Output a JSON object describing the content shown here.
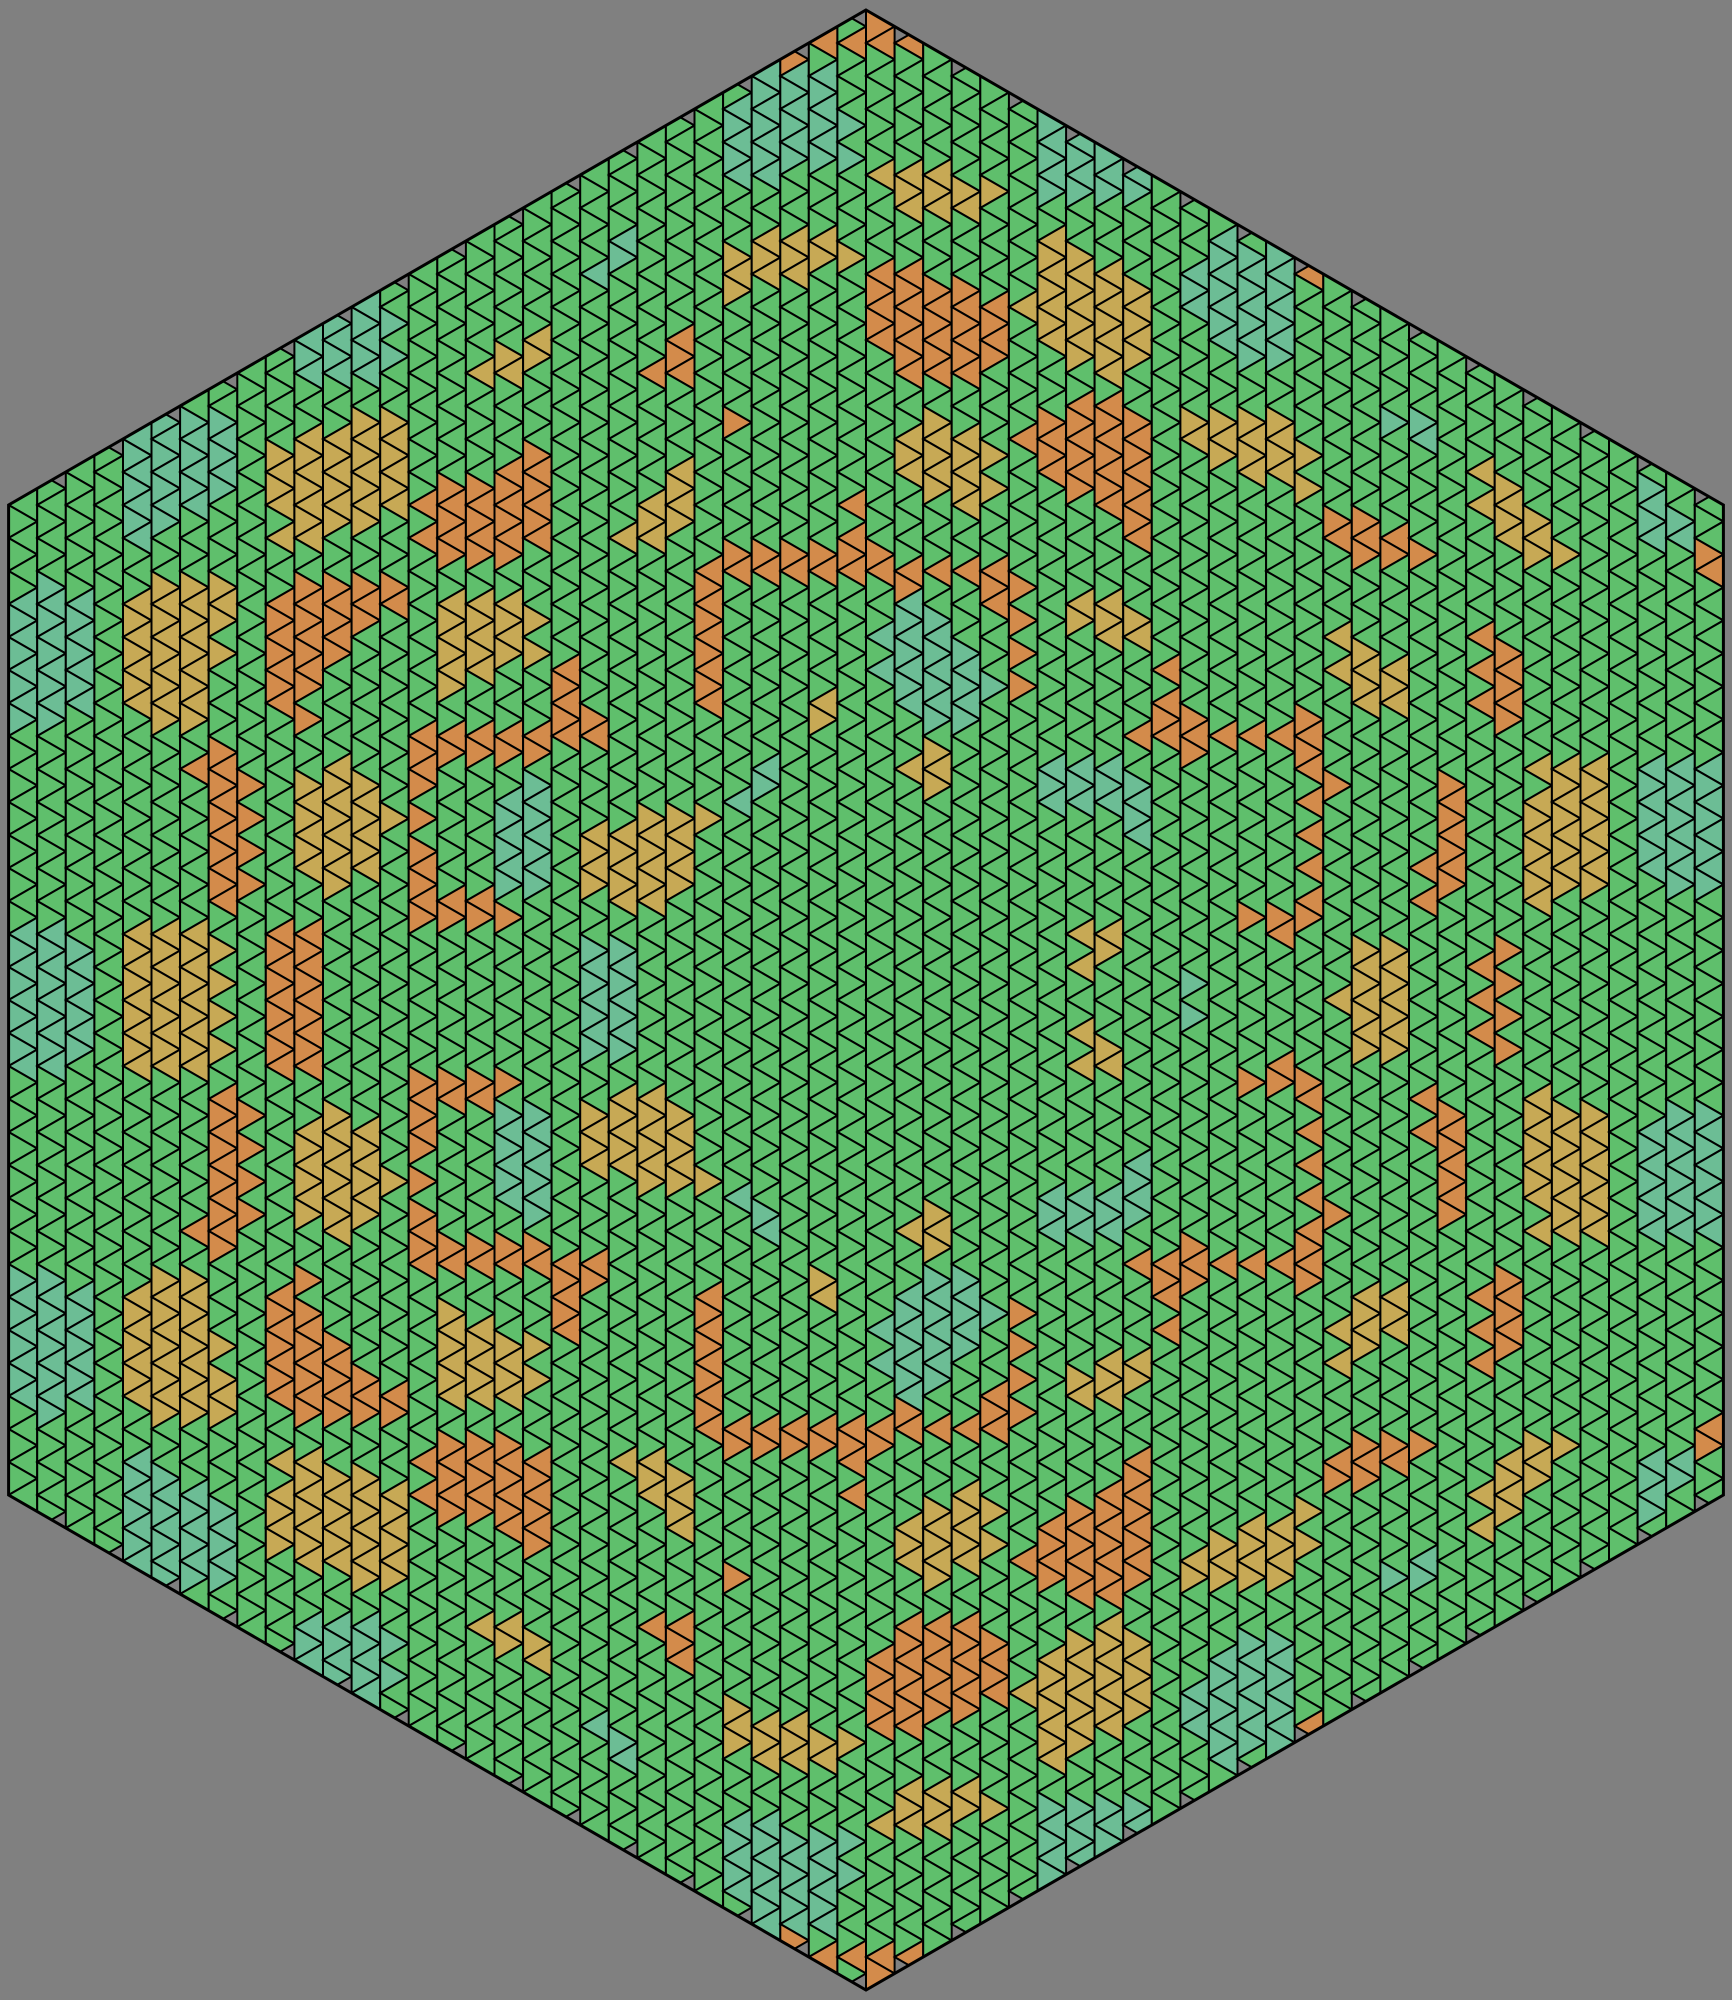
{
  "image": {
    "subject": "hexagonal-triangle-tiling-pattern",
    "colors": {
      "background": "#808080",
      "base_green": "#5fbf6c",
      "orange": "#d38b4b",
      "olive": "#c7a955",
      "teal": "#6cbd95",
      "stroke": "#000000"
    },
    "lattice": {
      "rows_per_side": 30
    }
  }
}
